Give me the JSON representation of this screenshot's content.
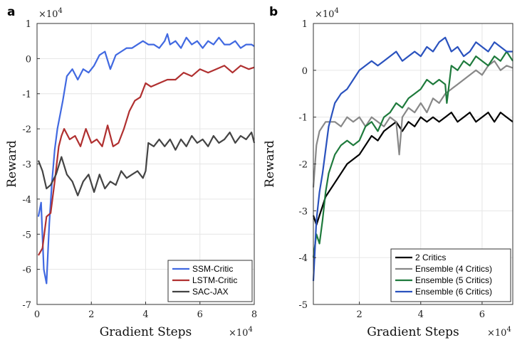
{
  "chart_data": [
    {
      "panel": "a",
      "type": "line",
      "xlabel": "Gradient Steps",
      "ylabel": "Reward",
      "x_multiplier": "×10^4",
      "y_multiplier": "×10^4",
      "xlim": [
        0,
        8
      ],
      "ylim": [
        -7,
        1
      ],
      "xticks": [
        "0",
        "2",
        "4",
        "6",
        "8"
      ],
      "yticks": [
        "1",
        "0",
        "-1",
        "-2",
        "-3",
        "-4",
        "-5",
        "-6",
        "-7"
      ],
      "legend": "bottom-right",
      "series": [
        {
          "name": "SSM-Critic",
          "color": "#4169e1",
          "x": [
            0.05,
            0.15,
            0.25,
            0.35,
            0.45,
            0.55,
            0.65,
            0.75,
            0.85,
            0.95,
            1.1,
            1.3,
            1.5,
            1.7,
            1.9,
            2.1,
            2.3,
            2.5,
            2.7,
            2.9,
            3.1,
            3.3,
            3.5,
            3.7,
            3.9,
            4.1,
            4.3,
            4.5,
            4.7,
            4.8,
            4.9,
            5.1,
            5.3,
            5.5,
            5.7,
            5.9,
            6.1,
            6.3,
            6.5,
            6.7,
            6.9,
            7.1,
            7.3,
            7.5,
            7.7,
            7.9,
            8.0
          ],
          "y": [
            -4.5,
            -4.1,
            -6.0,
            -6.4,
            -4.7,
            -3.5,
            -2.6,
            -2.0,
            -1.6,
            -1.2,
            -0.5,
            -0.3,
            -0.6,
            -0.3,
            -0.4,
            -0.2,
            0.1,
            0.2,
            -0.3,
            0.1,
            0.2,
            0.3,
            0.3,
            0.4,
            0.5,
            0.4,
            0.4,
            0.3,
            0.5,
            0.7,
            0.4,
            0.5,
            0.3,
            0.6,
            0.4,
            0.5,
            0.3,
            0.5,
            0.4,
            0.6,
            0.4,
            0.4,
            0.5,
            0.3,
            0.4,
            0.4,
            0.35
          ]
        },
        {
          "name": "LSTM-Critic",
          "color": "#b03030",
          "x": [
            0.05,
            0.2,
            0.35,
            0.5,
            0.65,
            0.8,
            0.9,
            1.0,
            1.2,
            1.4,
            1.6,
            1.8,
            2.0,
            2.2,
            2.4,
            2.6,
            2.8,
            3.0,
            3.2,
            3.4,
            3.6,
            3.8,
            4.0,
            4.2,
            4.5,
            4.8,
            5.1,
            5.4,
            5.7,
            6.0,
            6.3,
            6.6,
            6.9,
            7.2,
            7.5,
            7.8,
            8.0
          ],
          "y": [
            -5.6,
            -5.4,
            -4.5,
            -4.4,
            -3.5,
            -2.5,
            -2.2,
            -2.0,
            -2.3,
            -2.2,
            -2.5,
            -2.0,
            -2.4,
            -2.3,
            -2.5,
            -1.9,
            -2.5,
            -2.4,
            -2.0,
            -1.5,
            -1.2,
            -1.1,
            -0.7,
            -0.8,
            -0.7,
            -0.6,
            -0.6,
            -0.4,
            -0.5,
            -0.3,
            -0.4,
            -0.3,
            -0.2,
            -0.4,
            -0.2,
            -0.3,
            -0.25
          ]
        },
        {
          "name": "SAC-JAX",
          "color": "#444444",
          "x": [
            0.05,
            0.2,
            0.35,
            0.5,
            0.7,
            0.9,
            1.1,
            1.3,
            1.5,
            1.7,
            1.9,
            2.1,
            2.3,
            2.5,
            2.7,
            2.9,
            3.1,
            3.3,
            3.5,
            3.7,
            3.9,
            4.0,
            4.1,
            4.3,
            4.5,
            4.7,
            4.9,
            5.1,
            5.3,
            5.5,
            5.7,
            5.9,
            6.1,
            6.3,
            6.5,
            6.7,
            6.9,
            7.1,
            7.3,
            7.5,
            7.7,
            7.9,
            8.0
          ],
          "y": [
            -2.9,
            -3.2,
            -3.7,
            -3.6,
            -3.3,
            -2.8,
            -3.3,
            -3.5,
            -3.9,
            -3.5,
            -3.3,
            -3.8,
            -3.3,
            -3.7,
            -3.5,
            -3.6,
            -3.2,
            -3.4,
            -3.3,
            -3.2,
            -3.4,
            -3.2,
            -2.4,
            -2.5,
            -2.3,
            -2.5,
            -2.3,
            -2.6,
            -2.3,
            -2.5,
            -2.2,
            -2.4,
            -2.3,
            -2.5,
            -2.2,
            -2.4,
            -2.3,
            -2.1,
            -2.4,
            -2.2,
            -2.3,
            -2.1,
            -2.4
          ]
        }
      ]
    },
    {
      "panel": "b",
      "type": "line",
      "xlabel": "Gradient Steps",
      "ylabel": "Reward",
      "x_multiplier": "×10^4",
      "y_multiplier": "×10^4",
      "xlim": [
        0.5,
        7
      ],
      "ylim": [
        -5,
        1
      ],
      "xticks": [
        "2",
        "4",
        "6"
      ],
      "yticks": [
        "1",
        "0",
        "-1",
        "-2",
        "-3",
        "-4",
        "-5"
      ],
      "legend": "bottom-right",
      "series": [
        {
          "name": "2 Critics",
          "color": "#000000",
          "x": [
            0.5,
            0.6,
            0.7,
            0.8,
            0.9,
            1.0,
            1.2,
            1.4,
            1.6,
            1.8,
            2.0,
            2.2,
            2.4,
            2.6,
            2.8,
            3.0,
            3.2,
            3.4,
            3.6,
            3.8,
            4.0,
            4.2,
            4.4,
            4.6,
            4.8,
            5.0,
            5.2,
            5.4,
            5.6,
            5.8,
            6.0,
            6.2,
            6.4,
            6.6,
            6.8,
            7.0
          ],
          "y": [
            -3.1,
            -3.3,
            -3.1,
            -2.9,
            -2.7,
            -2.6,
            -2.4,
            -2.2,
            -2.0,
            -1.9,
            -1.8,
            -1.6,
            -1.4,
            -1.5,
            -1.3,
            -1.2,
            -1.1,
            -1.3,
            -1.1,
            -1.2,
            -1.0,
            -1.1,
            -1.0,
            -1.1,
            -1.0,
            -0.9,
            -1.1,
            -1.0,
            -0.9,
            -1.1,
            -1.0,
            -0.9,
            -1.1,
            -0.9,
            -1.0,
            -1.1
          ]
        },
        {
          "name": "Ensemble (4 Critics)",
          "color": "#888888",
          "x": [
            0.5,
            0.6,
            0.7,
            0.8,
            0.9,
            1.0,
            1.2,
            1.4,
            1.6,
            1.8,
            2.0,
            2.2,
            2.4,
            2.6,
            2.8,
            3.0,
            3.2,
            3.3,
            3.4,
            3.6,
            3.8,
            4.0,
            4.2,
            4.4,
            4.6,
            4.8,
            5.0,
            5.2,
            5.4,
            5.6,
            5.8,
            6.0,
            6.2,
            6.4,
            6.6,
            6.8,
            7.0
          ],
          "y": [
            -2.5,
            -1.6,
            -1.3,
            -1.2,
            -1.1,
            -1.1,
            -1.1,
            -1.2,
            -1.0,
            -1.1,
            -1.0,
            -1.2,
            -1.0,
            -1.1,
            -1.2,
            -1.0,
            -1.1,
            -1.8,
            -1.0,
            -0.8,
            -0.9,
            -0.7,
            -0.9,
            -0.6,
            -0.7,
            -0.5,
            -0.4,
            -0.3,
            -0.2,
            -0.1,
            0.0,
            -0.1,
            0.1,
            0.2,
            0.0,
            0.1,
            0.05
          ]
        },
        {
          "name": "Ensemble (5 Critics)",
          "color": "#1e7a3c",
          "x": [
            0.5,
            0.6,
            0.7,
            0.8,
            0.9,
            1.0,
            1.2,
            1.4,
            1.6,
            1.8,
            2.0,
            2.2,
            2.4,
            2.6,
            2.8,
            3.0,
            3.2,
            3.4,
            3.6,
            3.8,
            4.0,
            4.2,
            4.4,
            4.6,
            4.8,
            4.85,
            5.0,
            5.2,
            5.4,
            5.6,
            5.8,
            6.0,
            6.2,
            6.4,
            6.6,
            6.8,
            7.0
          ],
          "y": [
            -4.0,
            -3.5,
            -3.7,
            -3.2,
            -2.6,
            -2.2,
            -1.8,
            -1.6,
            -1.5,
            -1.6,
            -1.5,
            -1.2,
            -1.1,
            -1.3,
            -1.0,
            -0.9,
            -0.7,
            -0.8,
            -0.6,
            -0.5,
            -0.4,
            -0.2,
            -0.3,
            -0.2,
            -0.3,
            -0.7,
            0.1,
            0.0,
            0.2,
            0.1,
            0.3,
            0.2,
            0.1,
            0.3,
            0.2,
            0.4,
            0.2
          ]
        },
        {
          "name": "Ensemble (6 Critics)",
          "color": "#2a52be",
          "x": [
            0.5,
            0.6,
            0.7,
            0.8,
            0.9,
            1.0,
            1.2,
            1.4,
            1.6,
            1.8,
            2.0,
            2.2,
            2.4,
            2.6,
            2.8,
            3.0,
            3.2,
            3.4,
            3.6,
            3.8,
            4.0,
            4.2,
            4.4,
            4.6,
            4.8,
            5.0,
            5.2,
            5.4,
            5.6,
            5.8,
            6.0,
            6.2,
            6.4,
            6.6,
            6.8,
            7.0
          ],
          "y": [
            -4.5,
            -3.2,
            -2.6,
            -2.2,
            -1.7,
            -1.2,
            -0.7,
            -0.5,
            -0.4,
            -0.2,
            0.0,
            0.1,
            0.2,
            0.1,
            0.2,
            0.3,
            0.4,
            0.2,
            0.3,
            0.4,
            0.3,
            0.5,
            0.4,
            0.6,
            0.7,
            0.4,
            0.5,
            0.3,
            0.4,
            0.6,
            0.5,
            0.4,
            0.6,
            0.5,
            0.4,
            0.4
          ]
        }
      ]
    }
  ]
}
